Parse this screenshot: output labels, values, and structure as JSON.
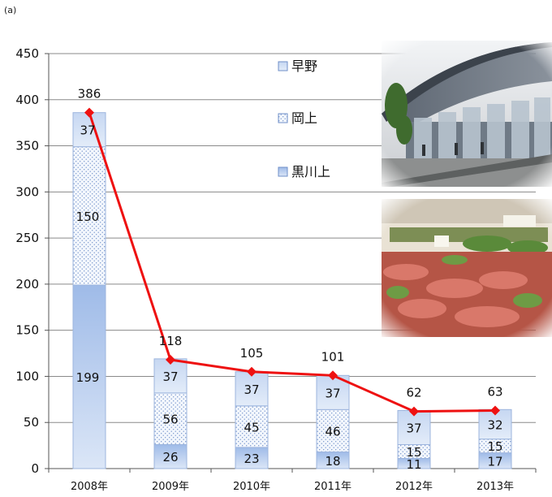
{
  "panel_label": "(a)",
  "chart_data": {
    "type": "bar",
    "stacked": true,
    "categories": [
      "2008年",
      "2009年",
      "2010年",
      "2011年",
      "2012年",
      "2013年"
    ],
    "series": [
      {
        "name": "黒川上",
        "values": [
          199,
          26,
          23,
          18,
          11,
          17
        ],
        "color": "#a8c2ea"
      },
      {
        "name": "岡上",
        "values": [
          150,
          56,
          45,
          46,
          15,
          15
        ],
        "color": "#eef3fb"
      },
      {
        "name": "早野",
        "values": [
          37,
          37,
          37,
          37,
          37,
          32
        ],
        "color": "#cbdbf3"
      }
    ],
    "totals_line": {
      "values": [
        386,
        118,
        105,
        101,
        62,
        63
      ],
      "color": "#ee1111"
    },
    "ylim": [
      0,
      450
    ],
    "yticks": [
      0,
      50,
      100,
      150,
      200,
      250,
      300,
      350,
      400,
      450
    ],
    "grid": true,
    "legend": "top-right",
    "legend_order": [
      "早野",
      "岡上",
      "黒川上"
    ],
    "photos": [
      "market-building-photo",
      "vegetable-stall-photo"
    ]
  }
}
